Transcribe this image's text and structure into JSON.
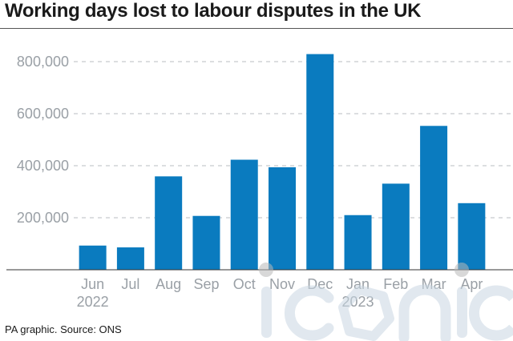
{
  "header": {
    "title": "Working days lost to labour disputes in the UK"
  },
  "footer": {
    "source": "PA graphic. Source: ONS"
  },
  "colors": {
    "bar": "#0a7bbf",
    "grid": "#b8bcc0",
    "tick_text": "#9aa0a6",
    "watermark": "#c9d7e2"
  },
  "watermark": {
    "text": "iconic",
    "type": "logo"
  },
  "chart_data": {
    "type": "bar",
    "title": "Working days lost to labour disputes in the UK",
    "xlabel": "",
    "ylabel": "",
    "categories": [
      "Jun",
      "Jul",
      "Aug",
      "Sep",
      "Oct",
      "Nov",
      "Dec",
      "Jan",
      "Feb",
      "Mar",
      "Apr"
    ],
    "year_labels": [
      {
        "category": "Jun",
        "year": "2022"
      },
      {
        "category": "Jan",
        "year": "2023"
      }
    ],
    "values": [
      93000,
      86000,
      359000,
      207000,
      423000,
      394000,
      829000,
      210000,
      331000,
      553000,
      256000
    ],
    "ylim": [
      0,
      800000
    ],
    "yticks": [
      200000,
      400000,
      600000,
      800000
    ],
    "ytick_labels": [
      "200,000",
      "400,000",
      "600,000",
      "800,000"
    ],
    "grid": true,
    "legend": "none"
  }
}
